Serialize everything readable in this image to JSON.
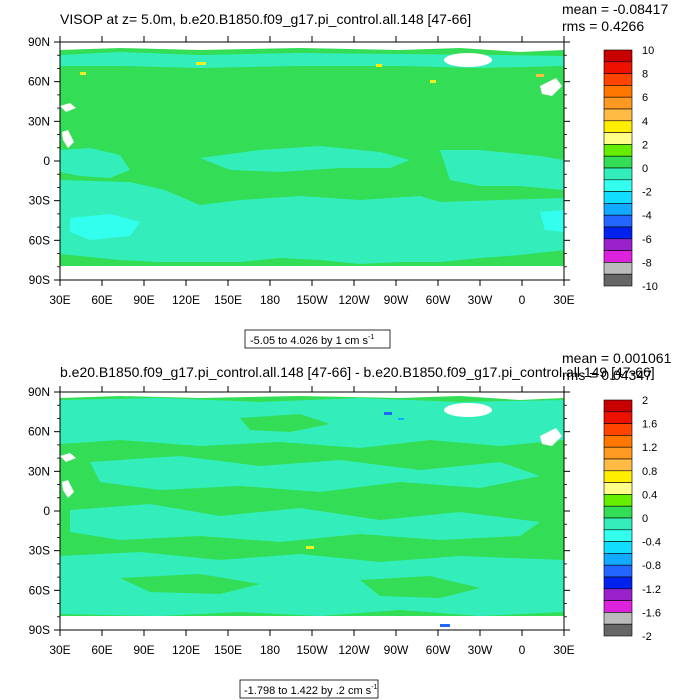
{
  "colors": {
    "land": "#ffffff",
    "ocean_zero": "#33dd55",
    "ocean_neg": "#33eebb",
    "ocean_deep": "#33ffdd",
    "spot_pos": "#eeee22",
    "spot_neg": "#2266ff",
    "border": "#000000"
  },
  "chart_data": [
    {
      "type": "heatmap",
      "title": "VISOP at z=   5.0m, b.e20.B1850.f09_g17.pi_control.all.148 [47-66]",
      "mean_label": "mean = -0.08417",
      "rms_label": "rms = 0.4266",
      "range_label": "-5.05 to 4.026 by 1 cm s",
      "range_sup": "-1",
      "ytick_labels": [
        "90N",
        "60N",
        "30N",
        "0",
        "30S",
        "60S",
        "90S"
      ],
      "xtick_labels": [
        "30E",
        "60E",
        "90E",
        "120E",
        "150E",
        "180",
        "150W",
        "120W",
        "90W",
        "60W",
        "30W",
        "0",
        "30E"
      ],
      "xlim": [
        30,
        390
      ],
      "ylim": [
        -90,
        90
      ],
      "grid": false,
      "legend_position": "right",
      "colorbar_levels": [
        "10",
        "8",
        "6",
        "4",
        "2",
        "0",
        "-2",
        "-4",
        "-6",
        "-8",
        "-10"
      ],
      "colorbar_colors": [
        "#c80000",
        "#ee1100",
        "#ff4400",
        "#ff7700",
        "#ff9922",
        "#ffbb44",
        "#ffee00",
        "#ffff88",
        "#66ee00",
        "#33dd55",
        "#33eebb",
        "#33ffee",
        "#11ddff",
        "#11aaff",
        "#2266ff",
        "#0022ee",
        "#9922cc",
        "#dd22dd",
        "#bbbbbb",
        "#666666"
      ],
      "dominant_level": "0"
    },
    {
      "type": "heatmap",
      "title": "b.e20.B1850.f09_g17.pi_control.all.148 [47-66] - b.e20.B1850.f09_g17.pi_control.all.149 [47-66]",
      "mean_label": "mean = 0.001061",
      "rms_label": "rms = 0.04347",
      "range_label": "-1.798 to 1.422 by .2 cm s",
      "range_sup": "-1",
      "ytick_labels": [
        "90N",
        "60N",
        "30N",
        "0",
        "30S",
        "60S",
        "90S"
      ],
      "xtick_labels": [
        "30E",
        "60E",
        "90E",
        "120E",
        "150E",
        "180",
        "150W",
        "120W",
        "90W",
        "60W",
        "30W",
        "0",
        "30E"
      ],
      "xlim": [
        30,
        390
      ],
      "ylim": [
        -90,
        90
      ],
      "grid": false,
      "legend_position": "right",
      "colorbar_levels": [
        "2",
        "1.6",
        "1.2",
        "0.8",
        "0.4",
        "0",
        "-0.4",
        "-0.8",
        "-1.2",
        "-1.6",
        "-2"
      ],
      "colorbar_colors": [
        "#c80000",
        "#ee1100",
        "#ff4400",
        "#ff7700",
        "#ff9922",
        "#ffbb44",
        "#ffee00",
        "#ffff88",
        "#66ee00",
        "#33dd55",
        "#33eebb",
        "#33ffee",
        "#11ddff",
        "#11aaff",
        "#2266ff",
        "#0022ee",
        "#9922cc",
        "#dd22dd",
        "#bbbbbb",
        "#666666"
      ],
      "dominant_level": "0"
    }
  ]
}
